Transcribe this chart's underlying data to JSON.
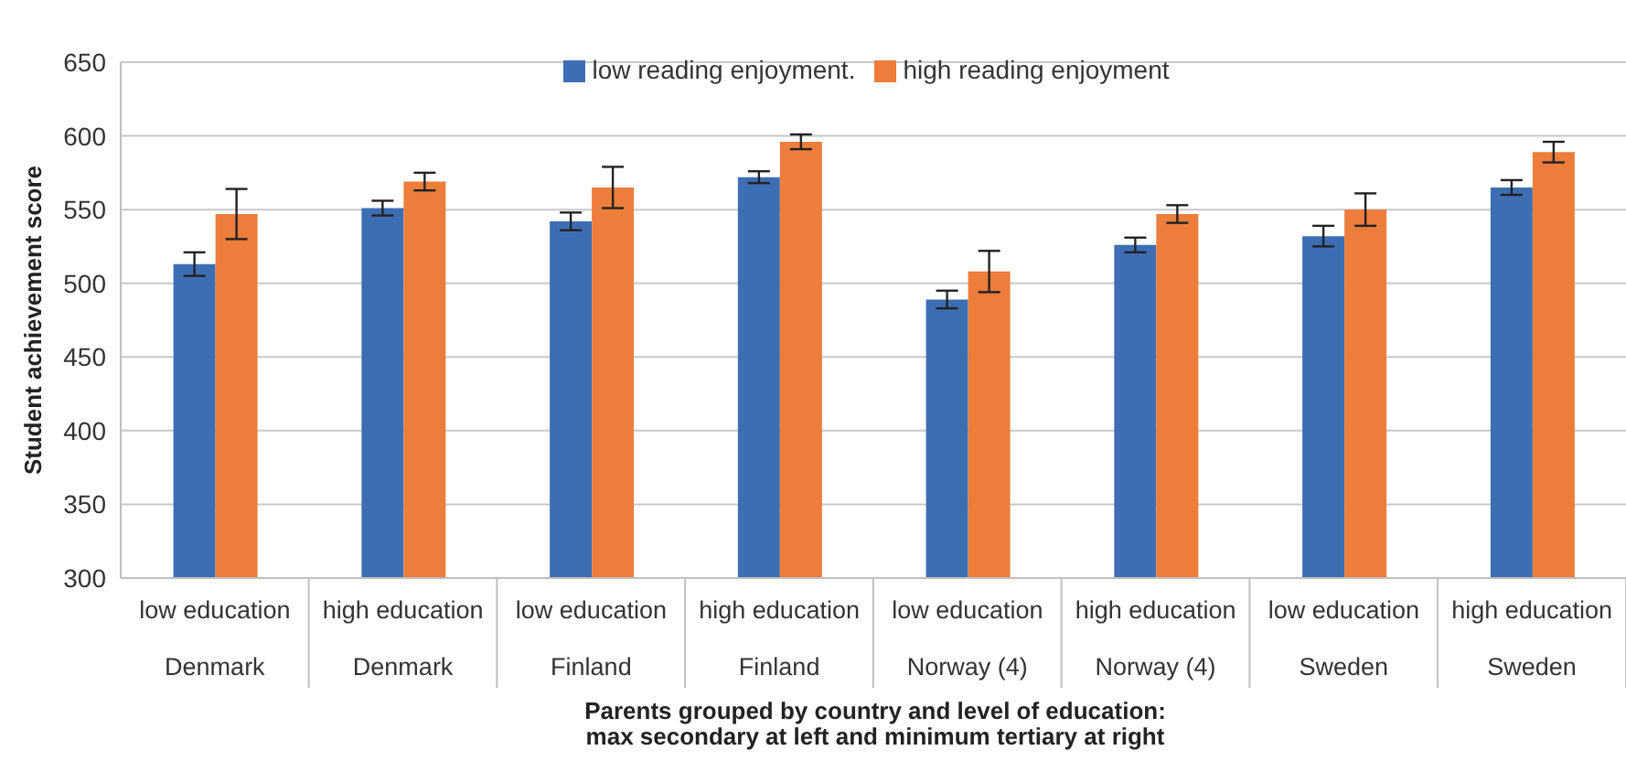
{
  "chart_data": {
    "type": "bar",
    "xlabel": "Parents grouped by country and level of education:\nmax secondary at left and minimum tertiary at right",
    "ylabel": "Student achievement score",
    "categories": [
      "low education\nDenmark",
      "high education\nDenmark",
      "low education\nFinland",
      "high education\nFinland",
      "low education\nNorway (4)",
      "high education\nNorway (4)",
      "low education\nSweden",
      "high education\nSweden"
    ],
    "series": [
      {
        "name": "low reading enjoyment.",
        "color": "#3d6eb4",
        "values": [
          513,
          551,
          542,
          572,
          489,
          526,
          532,
          565
        ],
        "errors": [
          8,
          5,
          6,
          4,
          6,
          5,
          7,
          5
        ]
      },
      {
        "name": "high reading enjoyment",
        "color": "#ec7d3b",
        "values": [
          547,
          569,
          565,
          596,
          508,
          547,
          550,
          589
        ],
        "errors": [
          17,
          6,
          14,
          5,
          14,
          6,
          11,
          7
        ]
      }
    ],
    "ylim": [
      300,
      650
    ],
    "yticks": [
      300,
      350,
      400,
      450,
      500,
      550,
      600,
      650
    ],
    "grid": "y",
    "legend": "top"
  }
}
